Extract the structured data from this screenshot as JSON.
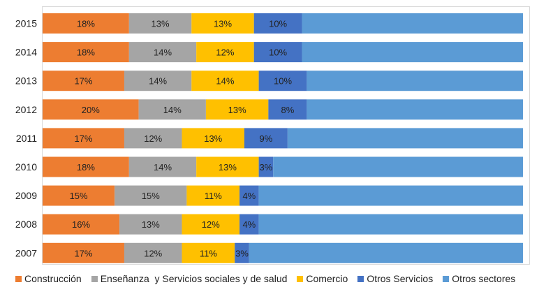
{
  "chart_data": {
    "type": "bar",
    "orientation": "horizontal",
    "stacked": "percent",
    "categories": [
      "2015",
      "2014",
      "2013",
      "2012",
      "2011",
      "2010",
      "2009",
      "2008",
      "2007"
    ],
    "series": [
      {
        "name": "Construcción",
        "color": "#ED7D31",
        "values": [
          18,
          18,
          17,
          20,
          17,
          18,
          15,
          16,
          17
        ]
      },
      {
        "name": "Enseñanza  y Servicios sociales y de salud",
        "color": "#A5A5A5",
        "values": [
          13,
          14,
          14,
          14,
          12,
          14,
          15,
          13,
          12
        ]
      },
      {
        "name": "Comercio",
        "color": "#FFC000",
        "values": [
          13,
          12,
          14,
          13,
          13,
          13,
          11,
          12,
          11
        ]
      },
      {
        "name": "Otros Servicios",
        "color": "#4472C4",
        "values": [
          10,
          10,
          10,
          8,
          9,
          3,
          4,
          4,
          3
        ]
      },
      {
        "name": "Otros sectores",
        "color": "#5B9BD5",
        "values": [
          46,
          46,
          45,
          45,
          49,
          52,
          55,
          55,
          57
        ]
      }
    ],
    "value_labels": [
      [
        "18%",
        "13%",
        "13%",
        "10%"
      ],
      [
        "18%",
        "14%",
        "12%",
        "10%"
      ],
      [
        "17%",
        "14%",
        "14%",
        "10%"
      ],
      [
        "20%",
        "14%",
        "13%",
        "8%"
      ],
      [
        "17%",
        "12%",
        "13%",
        "9%"
      ],
      [
        "18%",
        "14%",
        "13%",
        "3%"
      ],
      [
        "15%",
        "15%",
        "11%",
        "4%"
      ],
      [
        "16%",
        "13%",
        "12%",
        "4%"
      ],
      [
        "17%",
        "12%",
        "11%",
        "3%"
      ]
    ],
    "xlim": [
      0,
      100
    ],
    "legend_position": "bottom",
    "grid": false
  }
}
